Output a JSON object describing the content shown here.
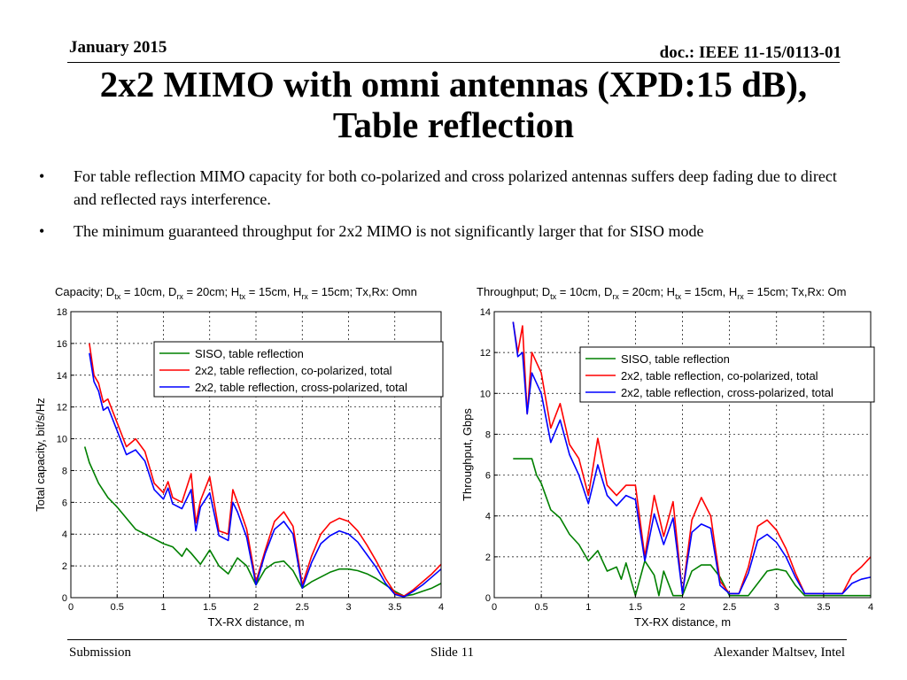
{
  "header": {
    "date": "January 2015",
    "doc": "doc.: IEEE 11-15/0113-01"
  },
  "title": {
    "line1": "2x2 MIMO with omni antennas (XPD:15 dB),",
    "line2": "Table reflection"
  },
  "bullets": [
    {
      "marker": "•",
      "text": "For table reflection MIMO capacity for both co-polarized and cross polarized antennas suffers deep fading due to direct and reflected rays interference."
    },
    {
      "marker": "•",
      "text": "The minimum guaranteed throughput for 2x2  MIMO is not significantly larger that for SISO mode"
    }
  ],
  "footer": {
    "left": "Submission",
    "center": "Slide 11",
    "right": "Alexander Maltsev, Intel"
  },
  "chart_data": [
    {
      "type": "line",
      "title": "Capacity; Dtx = 10cm, Drx = 20cm; Htx = 15cm, Hrx = 15cm; Tx,Rx: Omn",
      "title_parts": [
        "Capacity; D",
        "tx",
        " = 10cm, D",
        "rx",
        " = 20cm; H",
        "tx",
        " = 15cm, H",
        "rx",
        " = 15cm; Tx,Rx: Omn"
      ],
      "xlabel": "TX-RX distance, m",
      "ylabel": "Total capacity, bit/s/Hz",
      "xlim": [
        0,
        4
      ],
      "ylim": [
        0,
        18
      ],
      "xticks": [
        0,
        0.5,
        1,
        1.5,
        2,
        2.5,
        3,
        3.5,
        4
      ],
      "xtick_labels": [
        "0",
        "0.5",
        "1",
        "1.5",
        "2",
        "2.5",
        "3",
        "3.5",
        "4"
      ],
      "yticks": [
        0,
        2,
        4,
        6,
        8,
        10,
        12,
        14,
        16,
        18
      ],
      "ytick_labels": [
        "0",
        "2",
        "4",
        "6",
        "8",
        "10",
        "12",
        "14",
        "16",
        "18"
      ],
      "grid": true,
      "legend_position": "top-right",
      "series": [
        {
          "name": "SISO, table reflection",
          "color": "#008000",
          "x": [
            0.15,
            0.2,
            0.3,
            0.4,
            0.5,
            0.6,
            0.7,
            0.8,
            0.9,
            1.0,
            1.1,
            1.2,
            1.25,
            1.3,
            1.4,
            1.5,
            1.6,
            1.7,
            1.8,
            1.9,
            2.0,
            2.1,
            2.2,
            2.3,
            2.4,
            2.5,
            2.6,
            2.7,
            2.8,
            2.9,
            3.0,
            3.1,
            3.2,
            3.3,
            3.4,
            3.5,
            3.6,
            3.7,
            3.8,
            3.9,
            4.0
          ],
          "y": [
            9.5,
            8.5,
            7.2,
            6.3,
            5.7,
            5.0,
            4.3,
            4.0,
            3.7,
            3.4,
            3.2,
            2.6,
            3.1,
            2.8,
            2.1,
            3.0,
            2.0,
            1.5,
            2.5,
            2.0,
            0.8,
            1.8,
            2.2,
            2.3,
            1.7,
            0.6,
            1.0,
            1.3,
            1.6,
            1.8,
            1.8,
            1.7,
            1.5,
            1.2,
            0.8,
            0.4,
            0.1,
            0.2,
            0.4,
            0.6,
            0.9
          ]
        },
        {
          "name": "2x2, table reflection, co-polarized, total",
          "color": "#ff0000",
          "x": [
            0.2,
            0.25,
            0.3,
            0.35,
            0.4,
            0.5,
            0.6,
            0.7,
            0.8,
            0.9,
            1.0,
            1.05,
            1.1,
            1.2,
            1.3,
            1.35,
            1.4,
            1.5,
            1.6,
            1.7,
            1.75,
            1.8,
            1.9,
            2.0,
            2.1,
            2.2,
            2.3,
            2.4,
            2.5,
            2.6,
            2.7,
            2.8,
            2.9,
            3.0,
            3.1,
            3.2,
            3.3,
            3.4,
            3.5,
            3.6,
            3.7,
            3.8,
            3.9,
            4.0
          ],
          "y": [
            16.0,
            14.0,
            13.5,
            12.3,
            12.5,
            11.0,
            9.5,
            10.0,
            9.2,
            7.2,
            6.6,
            7.3,
            6.3,
            6.0,
            7.8,
            4.7,
            6.1,
            7.6,
            4.2,
            4.0,
            6.8,
            6.0,
            4.3,
            1.0,
            3.0,
            4.8,
            5.4,
            4.5,
            0.8,
            2.6,
            4.0,
            4.7,
            5.0,
            4.8,
            4.2,
            3.3,
            2.3,
            1.2,
            0.3,
            0.1,
            0.5,
            1.0,
            1.5,
            2.1
          ]
        },
        {
          "name": "2x2, table reflection, cross-polarized, total",
          "color": "#0000ff",
          "x": [
            0.2,
            0.25,
            0.3,
            0.35,
            0.4,
            0.5,
            0.6,
            0.7,
            0.8,
            0.9,
            1.0,
            1.05,
            1.1,
            1.2,
            1.3,
            1.35,
            1.4,
            1.5,
            1.6,
            1.7,
            1.75,
            1.8,
            1.9,
            2.0,
            2.1,
            2.2,
            2.3,
            2.4,
            2.5,
            2.6,
            2.7,
            2.8,
            2.9,
            3.0,
            3.1,
            3.2,
            3.3,
            3.4,
            3.5,
            3.6,
            3.7,
            3.8,
            3.9,
            4.0
          ],
          "y": [
            15.4,
            13.6,
            13.0,
            11.8,
            12.0,
            10.5,
            9.0,
            9.3,
            8.6,
            6.8,
            6.2,
            6.9,
            5.9,
            5.6,
            6.8,
            4.2,
            5.7,
            6.6,
            3.9,
            3.6,
            6.0,
            5.4,
            3.8,
            0.8,
            2.8,
            4.3,
            4.8,
            4.0,
            0.6,
            2.2,
            3.4,
            3.9,
            4.2,
            4.0,
            3.5,
            2.7,
            1.9,
            0.9,
            0.2,
            0.05,
            0.4,
            0.8,
            1.3,
            1.8
          ]
        }
      ]
    },
    {
      "type": "line",
      "title": "Throughput; Dtx = 10cm, Drx = 20cm; Htx = 15cm, Hrx = 15cm; Tx,Rx: Om",
      "title_parts": [
        "Throughput; D",
        "tx",
        " = 10cm, D",
        "rx",
        " = 20cm; H",
        "tx",
        " = 15cm, H",
        "rx",
        " = 15cm; Tx,Rx: Om"
      ],
      "xlabel": "TX-RX distance, m",
      "ylabel": "Throughput, Gbps",
      "xlim": [
        0,
        4
      ],
      "ylim": [
        0,
        14
      ],
      "xticks": [
        0,
        0.5,
        1,
        1.5,
        2,
        2.5,
        3,
        3.5,
        4
      ],
      "xtick_labels": [
        "0",
        "0.5",
        "1",
        "1.5",
        "2",
        "2.5",
        "3",
        "3.5",
        "4"
      ],
      "yticks": [
        0,
        2,
        4,
        6,
        8,
        10,
        12,
        14
      ],
      "ytick_labels": [
        "0",
        "2",
        "4",
        "6",
        "8",
        "10",
        "12",
        "14"
      ],
      "grid": true,
      "legend_position": "top-right",
      "series": [
        {
          "name": "SISO, table reflection",
          "color": "#008000",
          "x": [
            0.2,
            0.4,
            0.45,
            0.5,
            0.6,
            0.7,
            0.8,
            0.9,
            1.0,
            1.1,
            1.2,
            1.3,
            1.35,
            1.4,
            1.5,
            1.6,
            1.7,
            1.75,
            1.8,
            1.9,
            2.0,
            2.1,
            2.2,
            2.3,
            2.4,
            2.5,
            2.6,
            2.7,
            2.8,
            2.9,
            3.0,
            3.1,
            3.2,
            3.3,
            3.4,
            3.5,
            3.6,
            3.7,
            3.8,
            3.9,
            4.0
          ],
          "y": [
            6.8,
            6.8,
            6.0,
            5.6,
            4.3,
            3.9,
            3.1,
            2.6,
            1.8,
            2.3,
            1.3,
            1.5,
            0.9,
            1.7,
            0.1,
            1.8,
            1.1,
            0.1,
            1.3,
            0.1,
            0.1,
            1.3,
            1.6,
            1.6,
            1.0,
            0.1,
            0.1,
            0.1,
            0.7,
            1.3,
            1.4,
            1.3,
            0.6,
            0.1,
            0.1,
            0.1,
            0.1,
            0.1,
            0.1,
            0.1,
            0.1
          ]
        },
        {
          "name": "2x2, table reflection, co-polarized, total",
          "color": "#ff0000",
          "x": [
            0.2,
            0.25,
            0.3,
            0.35,
            0.4,
            0.5,
            0.6,
            0.7,
            0.8,
            0.9,
            1.0,
            1.1,
            1.2,
            1.3,
            1.4,
            1.5,
            1.6,
            1.7,
            1.8,
            1.9,
            2.0,
            2.1,
            2.2,
            2.3,
            2.4,
            2.5,
            2.6,
            2.7,
            2.8,
            2.9,
            3.0,
            3.1,
            3.2,
            3.3,
            3.4,
            3.5,
            3.6,
            3.7,
            3.8,
            3.9,
            4.0
          ],
          "y": [
            13.5,
            12.0,
            13.3,
            9.0,
            12.0,
            11.0,
            8.3,
            9.5,
            7.5,
            6.8,
            5.0,
            7.8,
            5.5,
            5.0,
            5.5,
            5.5,
            2.0,
            5.0,
            3.0,
            4.7,
            0.2,
            3.8,
            4.9,
            4.0,
            0.8,
            0.2,
            0.2,
            1.5,
            3.5,
            3.8,
            3.3,
            2.4,
            1.2,
            0.2,
            0.2,
            0.2,
            0.2,
            0.2,
            1.1,
            1.5,
            2.0
          ]
        },
        {
          "name": "2x2, table reflection, cross-polarized, total",
          "color": "#0000ff",
          "x": [
            0.2,
            0.25,
            0.3,
            0.35,
            0.4,
            0.5,
            0.6,
            0.7,
            0.8,
            0.9,
            1.0,
            1.1,
            1.2,
            1.3,
            1.4,
            1.5,
            1.6,
            1.7,
            1.8,
            1.9,
            2.0,
            2.1,
            2.2,
            2.3,
            2.4,
            2.5,
            2.6,
            2.7,
            2.8,
            2.9,
            3.0,
            3.1,
            3.2,
            3.3,
            3.4,
            3.5,
            3.6,
            3.7,
            3.8,
            3.9,
            4.0
          ],
          "y": [
            13.5,
            11.8,
            12.0,
            9.0,
            11.0,
            10.0,
            7.6,
            8.7,
            7.0,
            6.0,
            4.6,
            6.5,
            5.0,
            4.5,
            5.0,
            4.8,
            1.8,
            4.1,
            2.6,
            3.9,
            0.2,
            3.2,
            3.6,
            3.4,
            0.6,
            0.2,
            0.2,
            1.2,
            2.8,
            3.1,
            2.7,
            2.0,
            1.0,
            0.2,
            0.2,
            0.2,
            0.2,
            0.2,
            0.7,
            0.9,
            1.0
          ]
        }
      ]
    }
  ]
}
